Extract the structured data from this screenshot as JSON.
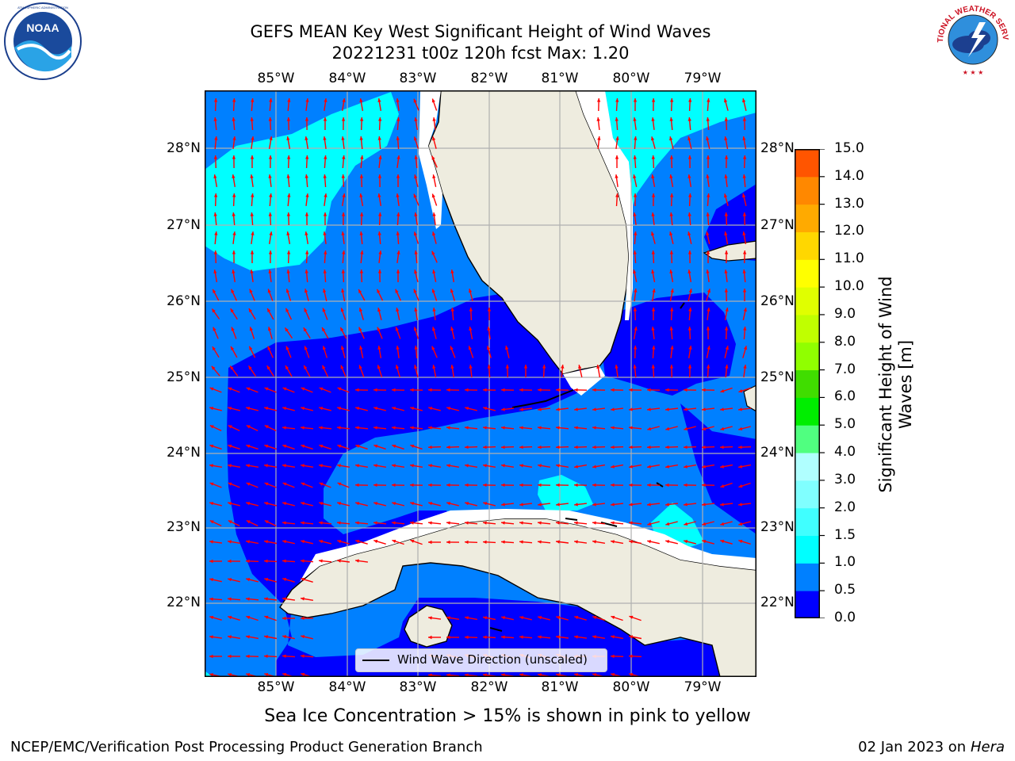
{
  "title": {
    "line1": "GEFS MEAN Key West Significant Height of Wind Waves",
    "line2": "20221231 t00z 120h fcst   Max: 1.20"
  },
  "logos": {
    "left": {
      "name": "NOAA",
      "ring_text": "NATIONAL OCEANIC AND ATMOSPHERIC ADMINISTRATION · U.S. DEPARTMENT OF COMMERCE"
    },
    "right": {
      "name": "NATIONAL WEATHER SERVICE"
    }
  },
  "map": {
    "lon_ticks": [
      "85°W",
      "84°W",
      "83°W",
      "82°W",
      "81°W",
      "80°W",
      "79°W"
    ],
    "lat_ticks": [
      "28°N",
      "27°N",
      "26°N",
      "25°N",
      "24°N",
      "23°N",
      "22°N"
    ],
    "land_color": "#eeecdf",
    "arrow_color": "#ff0000",
    "legend_label": "Wind Wave Direction (unscaled)"
  },
  "colorbar": {
    "label": "Significant Height of Wind Waves [m]",
    "label_line1": "Significant Height of Wind",
    "label_line2": "Waves [m]",
    "ticks": [
      "15.0",
      "14.0",
      "13.0",
      "12.0",
      "11.0",
      "10.0",
      "9.0",
      "8.0",
      "7.0",
      "6.0",
      "5.0",
      "4.0",
      "3.0",
      "2.0",
      "1.5",
      "1.0",
      "0.5",
      "0.0"
    ],
    "colors_bottom_to_top": [
      "#0000ff",
      "#0080ff",
      "#00ffff",
      "#40ffff",
      "#80ffff",
      "#b0ffff",
      "#50ff80",
      "#00ee00",
      "#40dd00",
      "#90ff00",
      "#c0ff00",
      "#e0ff00",
      "#ffff00",
      "#ffd700",
      "#ffaa00",
      "#ff8800",
      "#ff5500",
      "#ff2200",
      "#ff0000"
    ]
  },
  "caption": "Sea Ice Concentration > 15% is shown in pink to yellow",
  "footer": {
    "left": "NCEP/EMC/Verification Post Processing Product Generation Branch",
    "right_date": "02 Jan 2023 on ",
    "right_host": "Hera"
  }
}
